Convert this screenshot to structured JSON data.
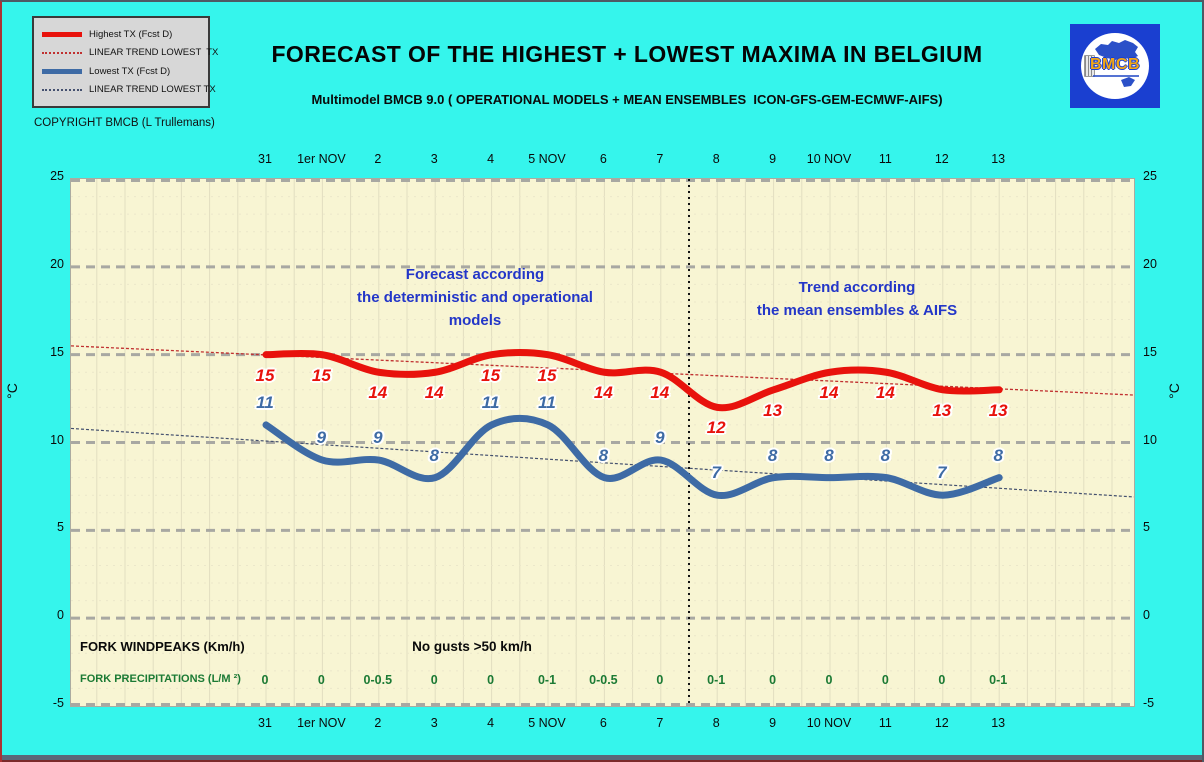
{
  "header": {
    "title": "FORECAST OF THE HIGHEST + LOWEST MAXIMA IN BELGIUM",
    "subtitle": "Multimodel BMCB 9.0 ( OPERATIONAL MODELS + MEAN ENSEMBLES  ICON-GFS-GEM-ECMWF-AIFS)",
    "copyright": "COPYRIGHT BMCB (L Trullemans)"
  },
  "legend": {
    "items": [
      {
        "label": "Highest TX (Fcst D)",
        "style": "solid",
        "color": "#E8120C"
      },
      {
        "label": "LINEAR TREND LOWEST  TX",
        "style": "dotted",
        "color": "#C03030"
      },
      {
        "label": "Lowest TX (Fcst D)",
        "style": "solid",
        "color": "#3E6BA5"
      },
      {
        "label": "LINEAR TREND LOWEST TX",
        "style": "dotted",
        "color": "#44506E"
      }
    ]
  },
  "logo": {
    "text": "BMCB"
  },
  "chart_data": {
    "type": "line",
    "x_labels": [
      "31",
      "1er NOV",
      "2",
      "3",
      "4",
      "5 NOV",
      "6",
      "7",
      "8",
      "9",
      "10 NOV",
      "11",
      "12",
      "13"
    ],
    "y_ticks": [
      25,
      20,
      15,
      10,
      5,
      0,
      -5
    ],
    "ylim": [
      -5,
      25
    ],
    "y_unit": "°C",
    "grid": "major horizontal dashed every 5°C, minor vertical every half day",
    "series": [
      {
        "name": "Highest TX (Fcst D)",
        "color": "#E8120C",
        "values": [
          15,
          15,
          14,
          14,
          15,
          15,
          14,
          14,
          12,
          13,
          14,
          14,
          13,
          13
        ],
        "label_side": "below"
      },
      {
        "name": "Lowest TX (Fcst D)",
        "color": "#3E6BA5",
        "values": [
          11,
          9,
          9,
          8,
          11,
          11,
          8,
          9,
          7,
          8,
          8,
          8,
          7,
          8
        ],
        "label_side": "above"
      }
    ],
    "trend_lines": [
      {
        "name": "LINEAR TREND LOWEST  TX",
        "color": "#C03030",
        "start": 15.5,
        "end": 12.7
      },
      {
        "name": "LINEAR TREND LOWEST TX",
        "color": "#44506E",
        "start": 10.8,
        "end": 6.9
      }
    ],
    "divider_after_index": 7,
    "annotations": [
      {
        "lines": [
          "Forecast according",
          "the deterministic and operational",
          "models"
        ]
      },
      {
        "lines": [
          "Trend according",
          "the mean ensembles & AIFS"
        ]
      }
    ]
  },
  "footer_rows": {
    "windpeaks_label": "FORK WINDPEAKS (Km/h)",
    "windpeaks_note": "No gusts >50 km/h",
    "precip_label": "FORK PRECIPITATIONS (L/M ²)",
    "precip_values": [
      "0",
      "0",
      "0-0.5",
      "0",
      "0",
      "0-1",
      "0-0.5",
      "0",
      "0-1",
      "0",
      "0",
      "0",
      "0",
      "0-1"
    ]
  }
}
